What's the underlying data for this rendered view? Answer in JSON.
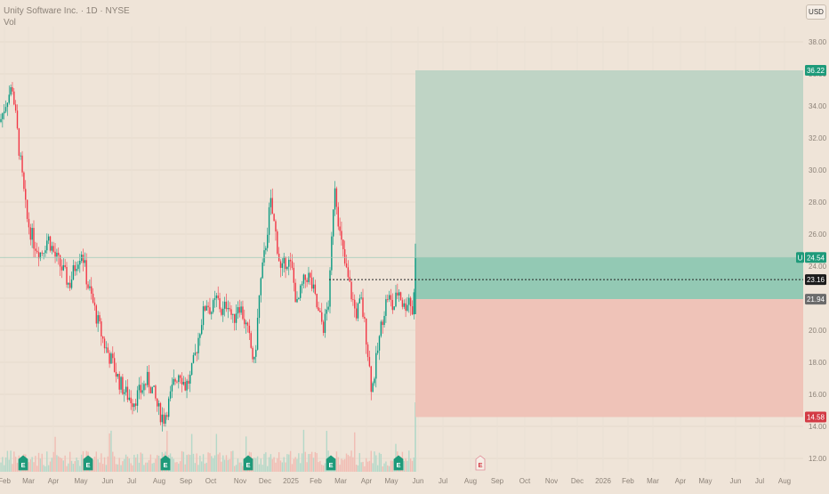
{
  "header": {
    "symbol_title": "Unity Software Inc. · 1D · NYSE",
    "volume_label": "Vol",
    "currency": "USD"
  },
  "colors": {
    "background": "#efe4d8",
    "up": "#089981",
    "down": "#f23645",
    "target_zone": "#bfd4c5",
    "entry_zone": "#93c9b4",
    "stop_zone": "#efc3b8"
  },
  "chart_data": {
    "type": "candlestick",
    "y_range": [
      11.5,
      40.0
    ],
    "y_ticks": [
      {
        "value": 38,
        "label": "38.00"
      },
      {
        "value": 36,
        "label": "36.00"
      },
      {
        "value": 34,
        "label": "34.00"
      },
      {
        "value": 32,
        "label": "32.00"
      },
      {
        "value": 30,
        "label": "30.00"
      },
      {
        "value": 28,
        "label": "28.00"
      },
      {
        "value": 26,
        "label": "26.00"
      },
      {
        "value": 24,
        "label": "24.00"
      },
      {
        "value": 22,
        "label": "22.00"
      },
      {
        "value": 20,
        "label": "20.00"
      },
      {
        "value": 18,
        "label": "18.00"
      },
      {
        "value": 16,
        "label": "16.00"
      },
      {
        "value": 14,
        "label": "14.00"
      },
      {
        "value": 12,
        "label": "12.00"
      }
    ],
    "x_ticks": [
      "Feb",
      "Mar",
      "Apr",
      "May",
      "Jun",
      "Jul",
      "Aug",
      "Sep",
      "Oct",
      "Nov",
      "Dec",
      "2025",
      "Feb",
      "Mar",
      "Apr",
      "May",
      "Jun",
      "Jul",
      "Aug",
      "Sep",
      "Oct",
      "Nov",
      "Dec",
      "2026",
      "Feb",
      "Mar",
      "Apr",
      "May",
      "Jun",
      "Jul",
      "Aug"
    ],
    "price_trend": [
      [
        0,
        33.0
      ],
      [
        8,
        34.5
      ],
      [
        14,
        35.2
      ],
      [
        22,
        31.0
      ],
      [
        30,
        27.0
      ],
      [
        38,
        25.5
      ],
      [
        46,
        24.8
      ],
      [
        54,
        25.8
      ],
      [
        62,
        24.6
      ],
      [
        70,
        23.8
      ],
      [
        78,
        22.8
      ],
      [
        86,
        24.3
      ],
      [
        92,
        25.0
      ],
      [
        98,
        23.0
      ],
      [
        104,
        21.8
      ],
      [
        110,
        20.5
      ],
      [
        118,
        19.0
      ],
      [
        126,
        18.0
      ],
      [
        134,
        16.8
      ],
      [
        142,
        16.0
      ],
      [
        150,
        15.6
      ],
      [
        158,
        16.2
      ],
      [
        166,
        16.9
      ],
      [
        172,
        16.2
      ],
      [
        178,
        15.0
      ],
      [
        184,
        14.5
      ],
      [
        190,
        15.5
      ],
      [
        196,
        16.8
      ],
      [
        202,
        17.5
      ],
      [
        208,
        16.5
      ],
      [
        214,
        17.0
      ],
      [
        220,
        18.6
      ],
      [
        226,
        20.5
      ],
      [
        232,
        21.8
      ],
      [
        238,
        21.2
      ],
      [
        244,
        22.0
      ],
      [
        250,
        21.0
      ],
      [
        256,
        21.9
      ],
      [
        262,
        20.5
      ],
      [
        268,
        21.8
      ],
      [
        274,
        20.8
      ],
      [
        280,
        19.5
      ],
      [
        286,
        17.8
      ],
      [
        292,
        22.5
      ],
      [
        298,
        25.0
      ],
      [
        304,
        28.0
      ],
      [
        310,
        26.0
      ],
      [
        316,
        23.5
      ],
      [
        322,
        24.5
      ],
      [
        328,
        23.8
      ],
      [
        334,
        21.5
      ],
      [
        340,
        22.8
      ],
      [
        346,
        23.5
      ],
      [
        352,
        22.5
      ],
      [
        358,
        21.0
      ],
      [
        364,
        20.2
      ],
      [
        370,
        22.0
      ],
      [
        376,
        29.5
      ],
      [
        382,
        26.0
      ],
      [
        388,
        24.0
      ],
      [
        394,
        22.5
      ],
      [
        400,
        21.0
      ],
      [
        406,
        21.8
      ],
      [
        412,
        19.5
      ],
      [
        418,
        16.2
      ],
      [
        424,
        18.5
      ],
      [
        430,
        20.8
      ],
      [
        436,
        22.2
      ],
      [
        442,
        21.3
      ],
      [
        448,
        22.6
      ],
      [
        454,
        21.4
      ],
      [
        460,
        22.1
      ],
      [
        464,
        21.0
      ],
      [
        468,
        24.5
      ]
    ],
    "volume_seed": 7,
    "current_price": 24.54,
    "last_price_marker": 23.16,
    "earnings_markers": [
      {
        "date_label": "Feb",
        "symbol": "E",
        "upcoming": false
      },
      {
        "date_label": "May",
        "symbol": "E",
        "upcoming": false
      },
      {
        "date_label": "Aug",
        "symbol": "E",
        "upcoming": false
      },
      {
        "date_label": "Nov",
        "symbol": "E",
        "upcoming": false
      },
      {
        "date_label": "Feb",
        "symbol": "E",
        "upcoming": false
      },
      {
        "date_label": "May",
        "symbol": "E",
        "upcoming": false
      },
      {
        "date_label": "Jul",
        "symbol": "E",
        "upcoming": true
      }
    ],
    "position_tool": {
      "target_price": 36.22,
      "entry_price": 21.94,
      "stop_price": 14.58,
      "current_price": 24.54
    },
    "price_labels": [
      {
        "value": 36.22,
        "label": "36.22",
        "kind": "target"
      },
      {
        "value": 24.54,
        "label": "24.54",
        "kind": "current"
      },
      {
        "value": 23.16,
        "label": "23.16",
        "kind": "marker"
      },
      {
        "value": 21.94,
        "label": "21.94",
        "kind": "entry"
      },
      {
        "value": 14.58,
        "label": "14.58",
        "kind": "stop"
      }
    ],
    "symbol_badge": "U"
  }
}
